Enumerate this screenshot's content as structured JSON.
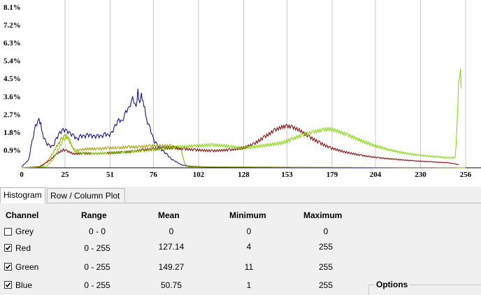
{
  "chart_data": {
    "type": "line",
    "y_tick_labels": [
      "0.9%",
      "1.8%",
      "2.7%",
      "3.6%",
      "4.5%",
      "5.4%",
      "6.3%",
      "7.2%",
      "8.1%"
    ],
    "x_tick_labels": [
      "0",
      "25",
      "51",
      "76",
      "102",
      "128",
      "153",
      "179",
      "204",
      "230",
      "256"
    ],
    "xlim": [
      0,
      256
    ],
    "ylim": [
      0,
      8.1
    ],
    "grid": "vertical",
    "series": [
      {
        "color": "#00007f",
        "points": [
          [
            0,
            0.05
          ],
          [
            4,
            0.4
          ],
          [
            6,
            1.3
          ],
          [
            8,
            2.1
          ],
          [
            10,
            2.4
          ],
          [
            11,
            2.2
          ],
          [
            12,
            1.7
          ],
          [
            14,
            1.25
          ],
          [
            16,
            1.1
          ],
          [
            18,
            1.05
          ],
          [
            20,
            1.45
          ],
          [
            22,
            1.75
          ],
          [
            24,
            1.9
          ],
          [
            26,
            1.85
          ],
          [
            28,
            1.7
          ],
          [
            30,
            1.6
          ],
          [
            32,
            1.4
          ],
          [
            34,
            1.6
          ],
          [
            36,
            1.55
          ],
          [
            38,
            1.65
          ],
          [
            40,
            1.6
          ],
          [
            42,
            1.55
          ],
          [
            44,
            1.6
          ],
          [
            46,
            1.55
          ],
          [
            48,
            1.7
          ],
          [
            50,
            1.6
          ],
          [
            52,
            1.75
          ],
          [
            54,
            2.1
          ],
          [
            56,
            2.4
          ],
          [
            58,
            2.3
          ],
          [
            60,
            2.8
          ],
          [
            62,
            3.0
          ],
          [
            64,
            3.5
          ],
          [
            66,
            3.0
          ],
          [
            67,
            3.9
          ],
          [
            68,
            3.2
          ],
          [
            69,
            3.7
          ],
          [
            70,
            3.3
          ],
          [
            71,
            3.0
          ],
          [
            72,
            2.4
          ],
          [
            74,
            2.0
          ],
          [
            76,
            1.4
          ],
          [
            78,
            1.15
          ],
          [
            80,
            0.95
          ],
          [
            82,
            0.8
          ],
          [
            84,
            0.65
          ],
          [
            86,
            0.45
          ],
          [
            88,
            0.35
          ],
          [
            90,
            0.25
          ],
          [
            92,
            0.15
          ],
          [
            96,
            0.08
          ],
          [
            110,
            0.03
          ],
          [
            160,
            0.0
          ],
          [
            256,
            0.0
          ]
        ]
      },
      {
        "color": "#9b9b00",
        "points": [
          [
            0,
            0
          ],
          [
            12,
            0.08
          ],
          [
            16,
            0.45
          ],
          [
            20,
            1.05
          ],
          [
            23,
            1.45
          ],
          [
            25,
            1.6
          ],
          [
            27,
            1.45
          ],
          [
            29,
            1.05
          ],
          [
            31,
            0.85
          ],
          [
            34,
            0.9
          ],
          [
            38,
            0.95
          ],
          [
            44,
            0.95
          ],
          [
            50,
            1.0
          ],
          [
            56,
            1.0
          ],
          [
            62,
            1.05
          ],
          [
            68,
            1.05
          ],
          [
            74,
            1.1
          ],
          [
            80,
            1.1
          ],
          [
            86,
            1.1
          ],
          [
            90,
            1.0
          ],
          [
            92,
            0.9
          ],
          [
            94,
            0.2
          ],
          [
            96,
            0.05
          ],
          [
            256,
            0
          ]
        ]
      },
      {
        "color": "#7f0000",
        "points": [
          [
            0,
            0
          ],
          [
            10,
            0.05
          ],
          [
            16,
            0.35
          ],
          [
            20,
            0.7
          ],
          [
            24,
            0.9
          ],
          [
            26,
            0.85
          ],
          [
            30,
            0.7
          ],
          [
            36,
            0.72
          ],
          [
            44,
            0.72
          ],
          [
            52,
            0.75
          ],
          [
            58,
            0.78
          ],
          [
            64,
            0.82
          ],
          [
            70,
            0.9
          ],
          [
            76,
            0.95
          ],
          [
            82,
            1.0
          ],
          [
            88,
            1.0
          ],
          [
            94,
            0.95
          ],
          [
            100,
            0.9
          ],
          [
            110,
            0.85
          ],
          [
            120,
            0.9
          ],
          [
            128,
            1.0
          ],
          [
            134,
            1.2
          ],
          [
            140,
            1.55
          ],
          [
            146,
            1.9
          ],
          [
            150,
            2.05
          ],
          [
            153,
            2.1
          ],
          [
            156,
            2.05
          ],
          [
            160,
            1.9
          ],
          [
            166,
            1.55
          ],
          [
            172,
            1.25
          ],
          [
            178,
            1.0
          ],
          [
            186,
            0.8
          ],
          [
            196,
            0.62
          ],
          [
            206,
            0.5
          ],
          [
            216,
            0.42
          ],
          [
            226,
            0.35
          ],
          [
            236,
            0.3
          ],
          [
            246,
            0.25
          ],
          [
            250,
            0.2
          ],
          [
            252,
            0.15
          ]
        ]
      },
      {
        "color": "#7fd500",
        "points": [
          [
            0,
            0
          ],
          [
            14,
            0.05
          ],
          [
            18,
            0.4
          ],
          [
            21,
            0.9
          ],
          [
            24,
            1.4
          ],
          [
            26,
            1.6
          ],
          [
            28,
            1.3
          ],
          [
            30,
            0.85
          ],
          [
            34,
            0.75
          ],
          [
            40,
            0.72
          ],
          [
            50,
            0.75
          ],
          [
            60,
            0.78
          ],
          [
            70,
            0.85
          ],
          [
            80,
            0.95
          ],
          [
            90,
            1.05
          ],
          [
            100,
            1.1
          ],
          [
            110,
            1.15
          ],
          [
            118,
            1.1
          ],
          [
            126,
            1.0
          ],
          [
            134,
            1.05
          ],
          [
            142,
            1.15
          ],
          [
            150,
            1.25
          ],
          [
            156,
            1.45
          ],
          [
            162,
            1.65
          ],
          [
            168,
            1.8
          ],
          [
            174,
            1.92
          ],
          [
            178,
            1.95
          ],
          [
            182,
            1.85
          ],
          [
            188,
            1.65
          ],
          [
            196,
            1.35
          ],
          [
            204,
            1.1
          ],
          [
            212,
            0.9
          ],
          [
            220,
            0.75
          ],
          [
            230,
            0.62
          ],
          [
            240,
            0.55
          ],
          [
            246,
            0.5
          ],
          [
            250,
            0.52
          ],
          [
            251,
            2.0
          ],
          [
            252,
            4.3
          ],
          [
            253,
            4.9
          ],
          [
            253.5,
            4.0
          ]
        ]
      }
    ]
  },
  "tabs": [
    {
      "label": "Histogram"
    },
    {
      "label": "Row / Column Plot"
    }
  ],
  "table": {
    "headers": {
      "channel": "Channel",
      "range": "Range",
      "mean": "Mean",
      "minimum": "Minimum",
      "maximum": "Maximum"
    },
    "rows": [
      {
        "name": "Grey",
        "checked": false,
        "range": "0 - 0",
        "mean": "0",
        "minimum": "0",
        "maximum": "0"
      },
      {
        "name": "Red",
        "checked": true,
        "range": "0 - 255",
        "mean": "127.14",
        "minimum": "4",
        "maximum": "255"
      },
      {
        "name": "Green",
        "checked": true,
        "range": "0 - 255",
        "mean": "149.27",
        "minimum": "11",
        "maximum": "255"
      },
      {
        "name": "Blue",
        "checked": true,
        "range": "0 - 255",
        "mean": "50.75",
        "minimum": "1",
        "maximum": "255"
      }
    ]
  },
  "options": {
    "label": "Options"
  }
}
